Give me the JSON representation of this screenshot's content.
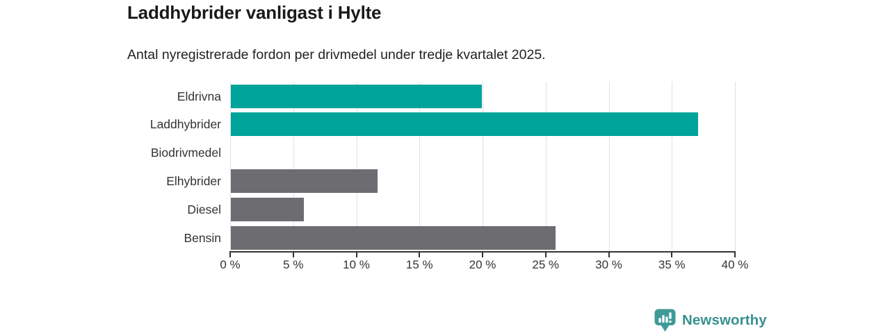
{
  "title": "Laddhybrider vanligast i Hylte",
  "subtitle": "Antal nyregistrerade fordon per drivmedel under tredje kvartalet 2025.",
  "chart_data": {
    "type": "bar",
    "orientation": "horizontal",
    "title": "Laddhybrider vanligast i Hylte",
    "subtitle": "Antal nyregistrerade fordon per drivmedel under tredje kvartalet 2025.",
    "categories": [
      "Eldrivna",
      "Laddhybrider",
      "Biodrivmedel",
      "Elhybrider",
      "Diesel",
      "Bensin"
    ],
    "values": [
      19.9,
      37.0,
      0.0,
      11.6,
      5.8,
      25.7
    ],
    "bar_colors": [
      "#00a49a",
      "#00a49a",
      "#00a49a",
      "#6c6c71",
      "#6c6c71",
      "#6c6c71"
    ],
    "unit": "%",
    "xlabel": "",
    "ylabel": "",
    "xlim": [
      0,
      40
    ],
    "x_ticks": [
      0,
      5,
      10,
      15,
      20,
      25,
      30,
      35,
      40
    ],
    "x_tick_labels": [
      "0 %",
      "5 %",
      "10 %",
      "15 %",
      "20 %",
      "25 %",
      "30 %",
      "35 %",
      "40 %"
    ],
    "grid": true,
    "legend": false
  },
  "footer": {
    "brand": "Newsworthy",
    "logo_icon": "bar-chart-badge-icon"
  },
  "colors": {
    "teal_bar": "#00a49a",
    "gray_bar": "#6c6c71",
    "gridline": "#e1e1e1",
    "axis": "#333333",
    "tick_text": "#333333",
    "title_text": "#1a1a1a",
    "brand_teal": "#38918f",
    "brand_icon_teal": "#3e9a96"
  }
}
